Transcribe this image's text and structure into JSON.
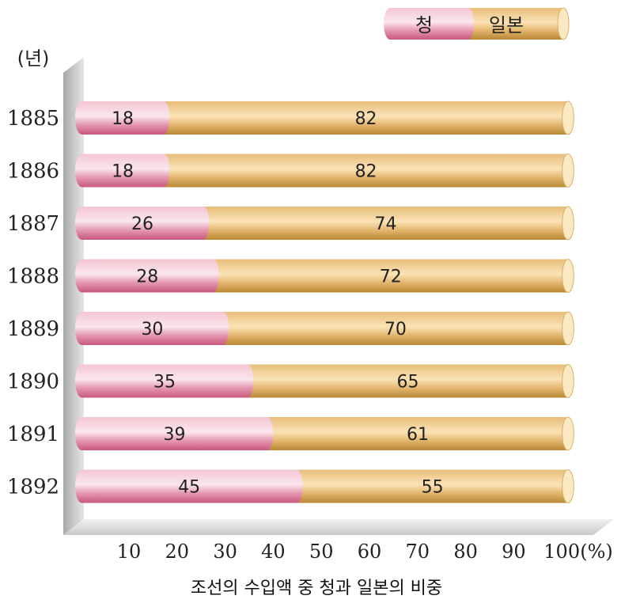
{
  "chart_data": {
    "type": "bar",
    "orientation": "horizontal",
    "stacked": true,
    "categories": [
      "1885",
      "1886",
      "1887",
      "1888",
      "1889",
      "1890",
      "1891",
      "1892"
    ],
    "series": [
      {
        "name": "청",
        "values": [
          18,
          18,
          26,
          28,
          30,
          35,
          39,
          45
        ]
      },
      {
        "name": "일본",
        "values": [
          82,
          82,
          74,
          72,
          70,
          65,
          61,
          55
        ]
      }
    ],
    "x_ticks": [
      "10",
      "20",
      "30",
      "40",
      "50",
      "60",
      "70",
      "80",
      "90",
      "100"
    ],
    "x_unit": "(%)",
    "y_unit": "(년)",
    "xlim": [
      0,
      100
    ],
    "legend_position": "top-right",
    "grid": false,
    "caption": "조선의 수입액 중 청과 일본의 비중",
    "colors": {
      "qing": "#e27a9a",
      "japan": "#d9a659"
    }
  }
}
